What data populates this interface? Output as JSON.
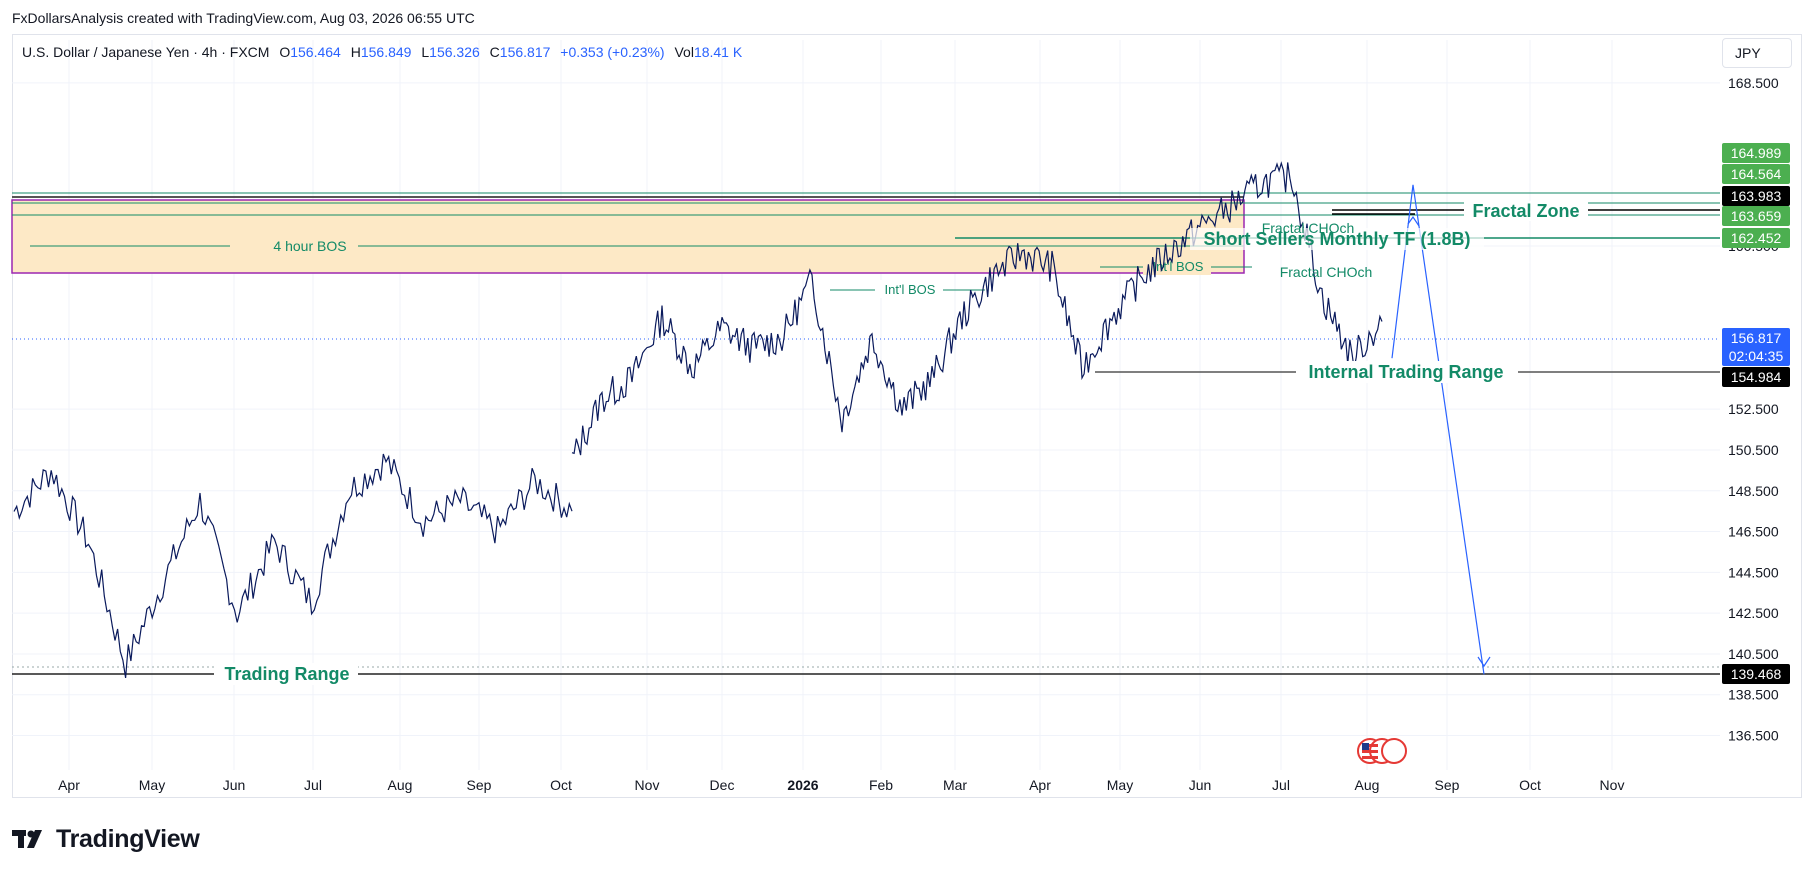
{
  "attribution": "FxDollarsAnalysis created with TradingView.com, Aug 03, 2026 06:55 UTC",
  "legend": {
    "symbol": "U.S. Dollar / Japanese Yen · 4h · FXCM",
    "o_label": "O",
    "o_value": "156.464",
    "h_label": "H",
    "h_value": "156.849",
    "l_label": "L",
    "l_value": "156.326",
    "c_label": "C",
    "c_value": "156.817",
    "change": "+0.353 (+0.23%)",
    "vol_label": "Vol",
    "vol_value": "18.41 K"
  },
  "currency_button": "JPY",
  "logo_text": "TradingView",
  "colors": {
    "candle": "#0a1a5c",
    "candle_alt": "#1e4fd8",
    "zone_fill": "#fde9c6",
    "zone_border": "#9c27b0",
    "green_line": "#138a67",
    "arrow": "#2962ff",
    "price_badge": "#2962ff",
    "green_badge": "#4caf50",
    "black_badge": "#000000"
  },
  "chart_data": {
    "type": "line",
    "symbol": "USDJPY",
    "timeframe": "4h",
    "ylim": [
      135.3,
      170.6
    ],
    "x_ticks": [
      "Apr",
      "May",
      "Jun",
      "Jul",
      "Aug",
      "Sep",
      "Oct",
      "Nov",
      "Dec",
      "2026",
      "Feb",
      "Mar",
      "Apr",
      "May",
      "Jun",
      "Jul",
      "Aug",
      "Sep",
      "Oct",
      "Nov"
    ],
    "y_ticks": [
      "168.500",
      "160.500",
      "152.500",
      "150.500",
      "148.500",
      "146.500",
      "144.500",
      "142.500",
      "140.500",
      "138.500",
      "136.500"
    ],
    "segment_1": {
      "x_range": [
        "Mar 2025",
        "Oct 2025"
      ],
      "points": [
        [
          "Mar",
          147.5
        ],
        [
          "Apr",
          149.5
        ],
        [
          "Apr",
          146.0
        ],
        [
          "May",
          140.0
        ],
        [
          "May",
          144.0
        ],
        [
          "Jun",
          148.0
        ],
        [
          "Jun",
          142.5
        ],
        [
          "Jul",
          146.0
        ],
        [
          "Jul",
          143.0
        ],
        [
          "Aug",
          148.5
        ],
        [
          "Aug",
          150.0
        ],
        [
          "Aug",
          147.0
        ],
        [
          "Sep",
          148.0
        ],
        [
          "Sep",
          146.5
        ],
        [
          "Oct",
          149.0
        ],
        [
          "Oct",
          147.5
        ]
      ]
    },
    "segment_2": {
      "x_range": [
        "Oct 2025",
        "Aug 2026"
      ],
      "points": [
        [
          "Oct",
          150.0
        ],
        [
          "Oct",
          153.0
        ],
        [
          "Nov",
          154.0
        ],
        [
          "Nov",
          157.0
        ],
        [
          "Nov",
          154.5
        ],
        [
          "Dec",
          156.5
        ],
        [
          "Dec",
          155.5
        ],
        [
          "Jan",
          156.0
        ],
        [
          "Jan",
          158.8
        ],
        [
          "Jan",
          152.0
        ],
        [
          "Feb",
          156.0
        ],
        [
          "Feb",
          152.5
        ],
        [
          "Mar",
          154.0
        ],
        [
          "Mar",
          157.0
        ],
        [
          "Apr",
          159.0
        ],
        [
          "Apr",
          160.2
        ],
        [
          "May",
          159.5
        ],
        [
          "May",
          154.5
        ],
        [
          "May",
          157.0
        ],
        [
          "Jun",
          159.0
        ],
        [
          "Jun",
          160.3
        ],
        [
          "Jul",
          161.5
        ],
        [
          "Jul",
          162.5
        ],
        [
          "Jul",
          163.6
        ],
        [
          "Aug",
          163.9
        ],
        [
          "Aug",
          158.0
        ],
        [
          "Aug",
          155.0
        ],
        [
          "Aug",
          156.8
        ]
      ]
    },
    "projection": [
      [
        "Aug",
        155.0
      ],
      [
        "Aug",
        163.5
      ],
      [
        "Sep",
        139.5
      ]
    ],
    "current_price": "156.817",
    "countdown": "02:04:35",
    "price_levels": [
      "164.989",
      "164.564",
      "163.983",
      "163.659",
      "162.452",
      "154.984",
      "139.468"
    ],
    "annotations": {
      "zone_label": "4 hour BOS",
      "intl_bos_1": "Int'l BOS",
      "intl_bos_2": "Int'l BOS",
      "fractal_choch_1": "Fractal CHOch",
      "fractal_choch_2": "Fractal CHOch",
      "fractal_zone": "Fractal Zone",
      "short_sellers": "Short Sellers Monthly TF (1.8B)",
      "internal_range": "Internal Trading Range",
      "trading_range": "Trading Range"
    }
  }
}
